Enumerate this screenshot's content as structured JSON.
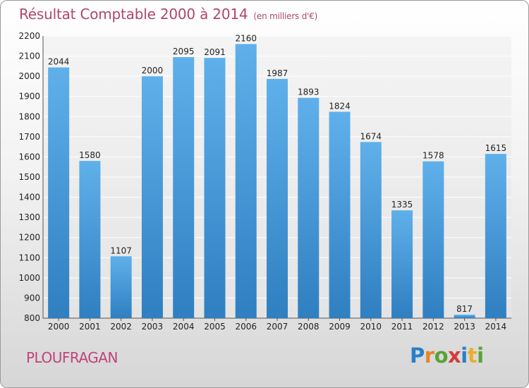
{
  "title": "Résultat Comptable 2000 à 2014",
  "unit_note": "(en milliers d'€)",
  "commune": "PLOUFRAGAN",
  "logo": {
    "text": "Proxiti",
    "letters": [
      {
        "ch": "P",
        "color": "#2a7fc9"
      },
      {
        "ch": "r",
        "color": "#e8842a"
      },
      {
        "ch": "o",
        "color": "#57a338"
      },
      {
        "ch": "x",
        "color": "#d63a3a"
      },
      {
        "ch": "i",
        "color": "#2a7fc9"
      },
      {
        "ch": "t",
        "color": "#e8b02a"
      },
      {
        "ch": "i",
        "color": "#57a338"
      }
    ]
  },
  "colors": {
    "bar_top": "#5fb0ea",
    "bar_bottom": "#2f7fc1",
    "title": "#b0466e",
    "commune": "#c0437a"
  },
  "chart_data": {
    "type": "bar",
    "title": "Résultat Comptable 2000 à 2014",
    "ylabel": "(en milliers d'€)",
    "xlabel": "",
    "categories": [
      "2000",
      "2001",
      "2002",
      "2003",
      "2004",
      "2005",
      "2006",
      "2007",
      "2008",
      "2009",
      "2010",
      "2011",
      "2012",
      "2013",
      "2014"
    ],
    "values": [
      2044,
      1580,
      1107,
      2000,
      2095,
      2091,
      2160,
      1987,
      1893,
      1824,
      1674,
      1335,
      1578,
      817,
      1615
    ],
    "ylim": [
      800,
      2200
    ],
    "yticks": [
      800,
      900,
      1000,
      1100,
      1200,
      1300,
      1400,
      1500,
      1600,
      1700,
      1800,
      1900,
      2000,
      2100,
      2200
    ],
    "grid": true,
    "legend": "none"
  }
}
